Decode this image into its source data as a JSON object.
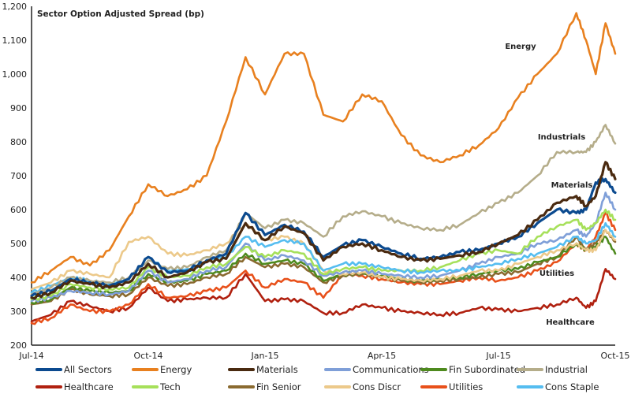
{
  "chart_data": {
    "type": "line",
    "title": "Sector Option Adjusted Spread (bp)",
    "xlabel": "",
    "ylabel": "",
    "ylim": [
      200,
      1200
    ],
    "yticks": [
      200,
      300,
      400,
      500,
      600,
      700,
      800,
      900,
      1000,
      1100,
      1200
    ],
    "ytick_labels": [
      "200",
      "300",
      "400",
      "500",
      "600",
      "700",
      "800",
      "900",
      "1,000",
      "1,100",
      "1,200"
    ],
    "xlim_months": [
      0,
      15
    ],
    "xticks_months": [
      0,
      3,
      6,
      9,
      12,
      15
    ],
    "xtick_labels": [
      "Jul-14",
      "Oct-14",
      "Jan-15",
      "Apr-15",
      "Jul-15",
      "Oct-15"
    ],
    "grid": false,
    "legend_position": "bottom",
    "x_months": [
      0,
      0.5,
      1,
      1.5,
      2,
      2.5,
      3,
      3.5,
      4,
      4.5,
      5,
      5.5,
      6,
      6.5,
      7,
      7.5,
      8,
      8.5,
      9,
      9.5,
      10,
      10.5,
      11,
      11.5,
      12,
      12.5,
      13,
      13.5,
      14,
      14.25,
      14.5,
      14.75,
      15
    ],
    "series": [
      {
        "name": "All Sectors",
        "color": "#0b4a8f",
        "values": [
          345,
          360,
          395,
          385,
          375,
          395,
          460,
          415,
          420,
          450,
          470,
          590,
          525,
          555,
          535,
          460,
          495,
          510,
          490,
          470,
          455,
          460,
          475,
          480,
          500,
          520,
          560,
          600,
          590,
          600,
          680,
          690,
          650
        ]
      },
      {
        "name": "Energy",
        "color": "#e8801f",
        "values": [
          385,
          420,
          460,
          435,
          480,
          580,
          675,
          640,
          660,
          700,
          860,
          1050,
          940,
          1060,
          1060,
          880,
          860,
          940,
          920,
          820,
          760,
          740,
          760,
          790,
          840,
          930,
          1000,
          1060,
          1180,
          1100,
          1000,
          1150,
          1060
        ]
      },
      {
        "name": "Materials",
        "color": "#4a2a10",
        "values": [
          340,
          355,
          390,
          380,
          370,
          385,
          440,
          400,
          415,
          445,
          455,
          560,
          510,
          550,
          530,
          450,
          490,
          500,
          480,
          460,
          450,
          455,
          465,
          475,
          500,
          525,
          570,
          620,
          640,
          610,
          640,
          740,
          690
        ]
      },
      {
        "name": "Communications",
        "color": "#7f9fd8",
        "values": [
          330,
          340,
          360,
          355,
          350,
          360,
          420,
          385,
          395,
          420,
          430,
          500,
          450,
          465,
          450,
          405,
          415,
          420,
          410,
          405,
          400,
          405,
          420,
          440,
          460,
          470,
          500,
          510,
          540,
          520,
          560,
          650,
          600
        ]
      },
      {
        "name": "Fin Subordinated",
        "color": "#4e8a1e",
        "values": [
          325,
          335,
          370,
          360,
          355,
          360,
          410,
          385,
          390,
          410,
          420,
          470,
          440,
          450,
          440,
          390,
          410,
          415,
          405,
          395,
          390,
          395,
          400,
          410,
          420,
          425,
          445,
          460,
          500,
          480,
          490,
          520,
          470
        ]
      },
      {
        "name": "Industrial",
        "color": "#b5ad8a",
        "values": [
          350,
          370,
          400,
          390,
          385,
          400,
          450,
          425,
          430,
          460,
          480,
          590,
          545,
          570,
          560,
          520,
          580,
          595,
          580,
          560,
          545,
          540,
          555,
          590,
          620,
          650,
          700,
          770,
          770,
          770,
          800,
          850,
          795
        ]
      },
      {
        "name": "Healthcare",
        "color": "#b0200f",
        "values": [
          270,
          290,
          330,
          315,
          300,
          310,
          370,
          330,
          335,
          340,
          340,
          410,
          330,
          335,
          330,
          295,
          295,
          320,
          310,
          300,
          295,
          290,
          295,
          310,
          305,
          300,
          310,
          320,
          340,
          310,
          330,
          425,
          395
        ]
      },
      {
        "name": "Tech",
        "color": "#a6e05a",
        "values": [
          335,
          345,
          380,
          370,
          365,
          370,
          430,
          400,
          405,
          430,
          440,
          490,
          460,
          480,
          470,
          410,
          425,
          430,
          420,
          420,
          420,
          430,
          450,
          470,
          480,
          470,
          520,
          550,
          570,
          540,
          560,
          600,
          570
        ]
      },
      {
        "name": "Fin Senior",
        "color": "#8a6a30",
        "values": [
          320,
          330,
          365,
          350,
          345,
          350,
          400,
          375,
          380,
          400,
          410,
          460,
          430,
          440,
          430,
          385,
          405,
          410,
          400,
          390,
          385,
          390,
          395,
          400,
          410,
          415,
          440,
          460,
          520,
          480,
          500,
          540,
          505
        ]
      },
      {
        "name": "Cons Discr",
        "color": "#ecc98a",
        "values": [
          365,
          385,
          420,
          410,
          400,
          505,
          520,
          470,
          465,
          480,
          500,
          560,
          510,
          520,
          500,
          420,
          410,
          415,
          400,
          395,
          390,
          395,
          405,
          420,
          420,
          440,
          460,
          480,
          500,
          480,
          480,
          540,
          510
        ]
      },
      {
        "name": "Utilities",
        "color": "#e8501a",
        "values": [
          265,
          280,
          320,
          300,
          300,
          320,
          380,
          340,
          345,
          360,
          370,
          420,
          370,
          395,
          385,
          340,
          410,
          405,
          395,
          385,
          380,
          380,
          390,
          400,
          390,
          400,
          420,
          445,
          500,
          480,
          520,
          590,
          540
        ]
      },
      {
        "name": "Cons Staple",
        "color": "#55bdf0",
        "values": [
          355,
          375,
          400,
          390,
          380,
          395,
          460,
          420,
          425,
          450,
          460,
          520,
          490,
          510,
          500,
          420,
          440,
          440,
          430,
          420,
          415,
          420,
          420,
          430,
          440,
          455,
          470,
          490,
          520,
          500,
          510,
          560,
          520
        ]
      }
    ],
    "annotations": [
      {
        "text": "Energy",
        "series": "Energy"
      },
      {
        "text": "Industrials",
        "series": "Industrial"
      },
      {
        "text": "Materials",
        "series": "Materials"
      },
      {
        "text": "Utilities",
        "series": "Utilities"
      },
      {
        "text": "Healthcare",
        "series": "Healthcare"
      }
    ],
    "legend_order": [
      "All Sectors",
      "Energy",
      "Materials",
      "Communications",
      "Fin Subordinated",
      "Industrial",
      "Healthcare",
      "Tech",
      "Fin Senior",
      "Cons Discr",
      "Utilities",
      "Cons Staple"
    ]
  }
}
